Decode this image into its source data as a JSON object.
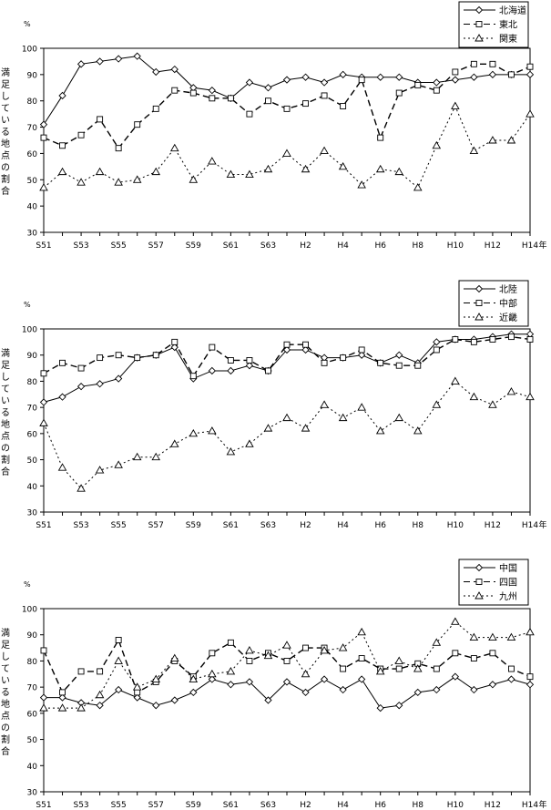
{
  "common": {
    "x": [
      "S51",
      "S52",
      "S53",
      "S54",
      "S55",
      "S56",
      "S57",
      "S58",
      "S59",
      "S60",
      "S61",
      "S62",
      "S63",
      "H1",
      "H2",
      "H3",
      "H4",
      "H5",
      "H6",
      "H7",
      "H8",
      "H9",
      "H10",
      "H11",
      "H12",
      "H13",
      "H14"
    ],
    "tick_labels": [
      "S51",
      "S53",
      "S55",
      "S57",
      "S59",
      "S61",
      "S63",
      "H2",
      "H4",
      "H6",
      "H8",
      "H10",
      "H12",
      "H14"
    ],
    "y_ticks": [
      30,
      40,
      50,
      60,
      70,
      80,
      90,
      100
    ],
    "ylim": [
      30,
      100
    ],
    "y_unit": "%",
    "x_unit": "年",
    "ylabel_chars": [
      "満",
      "足",
      "し",
      "て",
      "い",
      "る",
      "地",
      "点",
      "の",
      "割",
      "合"
    ]
  },
  "chart_data": [
    {
      "type": "line",
      "legend": "top-right",
      "series": [
        {
          "name": "北海道",
          "style": "solid",
          "marker": "diamond",
          "values": [
            71,
            82,
            94,
            95,
            96,
            97,
            91,
            92,
            85,
            84,
            81,
            87,
            85,
            88,
            89,
            87,
            90,
            89,
            89,
            89,
            87,
            87,
            88,
            89,
            90,
            90,
            90
          ]
        },
        {
          "name": "東北",
          "style": "dashed",
          "marker": "square",
          "values": [
            66,
            63,
            67,
            73,
            62,
            71,
            77,
            84,
            83,
            81,
            81,
            75,
            80,
            77,
            79,
            82,
            78,
            88,
            66,
            83,
            86,
            84,
            91,
            94,
            94,
            90,
            93
          ]
        },
        {
          "name": "関東",
          "style": "dotted",
          "marker": "triangle",
          "values": [
            47,
            53,
            49,
            53,
            49,
            50,
            53,
            62,
            50,
            57,
            52,
            52,
            54,
            60,
            54,
            61,
            55,
            48,
            54,
            53,
            47,
            63,
            78,
            61,
            65,
            65,
            75
          ]
        }
      ]
    },
    {
      "type": "line",
      "legend": "top-right",
      "series": [
        {
          "name": "北陸",
          "style": "solid",
          "marker": "diamond",
          "values": [
            72,
            74,
            78,
            79,
            81,
            89,
            90,
            93,
            81,
            84,
            84,
            86,
            84,
            92,
            92,
            89,
            89,
            90,
            87,
            90,
            87,
            95,
            96,
            96,
            97,
            98,
            98
          ]
        },
        {
          "name": "中部",
          "style": "dashed",
          "marker": "square",
          "values": [
            83,
            87,
            85,
            89,
            90,
            89,
            90,
            95,
            82,
            93,
            88,
            88,
            84,
            94,
            94,
            87,
            89,
            92,
            87,
            86,
            86,
            92,
            96,
            95,
            96,
            97,
            96
          ]
        },
        {
          "name": "近畿",
          "style": "dotted",
          "marker": "triangle",
          "values": [
            64,
            47,
            39,
            46,
            48,
            51,
            51,
            56,
            60,
            61,
            53,
            56,
            62,
            66,
            62,
            71,
            66,
            70,
            61,
            66,
            61,
            71,
            80,
            74,
            71,
            76,
            74
          ]
        }
      ]
    },
    {
      "type": "line",
      "legend": "top-right",
      "series": [
        {
          "name": "中国",
          "style": "solid",
          "marker": "diamond",
          "values": [
            66,
            66,
            64,
            63,
            69,
            66,
            63,
            65,
            68,
            73,
            71,
            72,
            65,
            72,
            68,
            73,
            69,
            73,
            62,
            63,
            68,
            69,
            74,
            69,
            71,
            73,
            71
          ]
        },
        {
          "name": "四国",
          "style": "dashed",
          "marker": "square",
          "values": [
            84,
            68,
            76,
            76,
            88,
            68,
            72,
            80,
            74,
            83,
            87,
            80,
            83,
            80,
            85,
            85,
            77,
            81,
            77,
            77,
            79,
            77,
            83,
            81,
            83,
            77,
            74
          ]
        },
        {
          "name": "九州",
          "style": "dotted",
          "marker": "triangle",
          "values": [
            62,
            62,
            62,
            67,
            80,
            70,
            73,
            81,
            73,
            75,
            76,
            84,
            82,
            86,
            75,
            84,
            85,
            91,
            76,
            80,
            77,
            87,
            95,
            89,
            89,
            89,
            91
          ]
        }
      ]
    }
  ]
}
